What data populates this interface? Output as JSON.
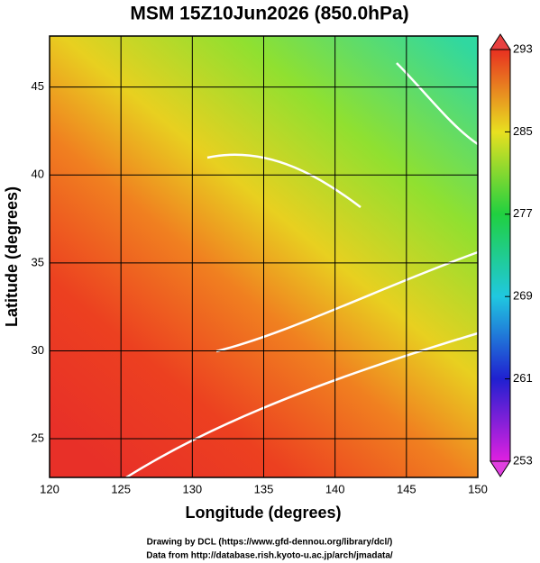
{
  "chart_data": {
    "type": "map",
    "title": "MSM 15Z10Jun2026 (850.0hPa)",
    "xlabel": "Longitude (degrees)",
    "ylabel": "Latitude  (degrees)",
    "xlim": [
      120,
      150
    ],
    "ylim": [
      22.8,
      47.9
    ],
    "xticks": [
      120,
      125,
      130,
      135,
      140,
      145,
      150
    ],
    "yticks": [
      25,
      30,
      35,
      40,
      45
    ],
    "grid": true,
    "colorbar": {
      "lim": [
        253,
        293
      ],
      "ticks": [
        253,
        261,
        269,
        277,
        285,
        293
      ]
    }
  },
  "footer": {
    "lines": [
      "Drawing by DCL (https://www.gfd-dennou.org/library/dcl/)",
      "Data from http://database.rish.kyoto-u.ac.jp/arch/jmadata/"
    ]
  }
}
